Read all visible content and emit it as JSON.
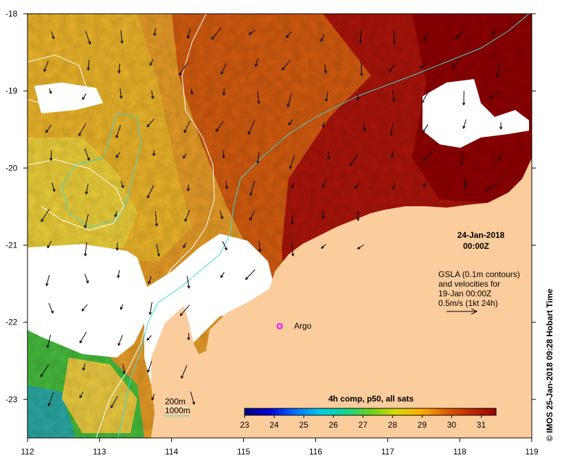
{
  "map": {
    "x_ticks": [
      "112",
      "113",
      "114",
      "115",
      "116",
      "117",
      "118",
      "119"
    ],
    "y_ticks": [
      "-18",
      "-19",
      "-20",
      "-21",
      "-22",
      "-23"
    ],
    "x_range": [
      112,
      119
    ],
    "y_range": [
      -23.5,
      -18
    ]
  },
  "date_stamp": {
    "date": "24-Jan-2018",
    "time": "00:00Z"
  },
  "gsla_note": {
    "line1": "GSLA (0.1m contours)",
    "line2": "and velocities for",
    "line3": "19-Jan 00:00Z",
    "line4": "0.5m/s (1kt 24h)"
  },
  "argo": {
    "label": "Argo",
    "lon": 115.5,
    "lat": -22.05,
    "color": "#ff00ff"
  },
  "isobath_legend": {
    "label_200": "200m",
    "label_1000": "1000m",
    "color_200": "#ffffff",
    "color_1000": "#33dddd"
  },
  "colorbar": {
    "title": "4h comp, p50, all sats",
    "ticks": [
      "23",
      "24",
      "25",
      "26",
      "27",
      "28",
      "29",
      "30",
      "31"
    ],
    "range": [
      23,
      31.5
    ],
    "stops": [
      "#000080",
      "#0000d8",
      "#0070ff",
      "#00c8e8",
      "#10d890",
      "#6ad020",
      "#d8d800",
      "#ffb000",
      "#e06000",
      "#c02800",
      "#9a0000"
    ]
  },
  "credit": "© IMOS 25-Jan-2018 09:28 Hobart Time",
  "colors": {
    "land": "#fbcc9c",
    "cloud": "#ffffff",
    "hot": "#a01000",
    "warm": "#d86a10",
    "mild": "#e8a820",
    "cool": "#e8d040",
    "cold": "#40b840"
  }
}
